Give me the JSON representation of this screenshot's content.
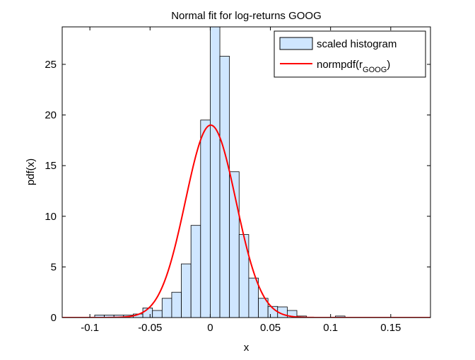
{
  "chart_data": {
    "type": "bar",
    "title": "Normal fit for log-returns GOOG",
    "xlabel": "x",
    "ylabel": "pdf(x)",
    "xlim": [
      -0.123,
      0.183
    ],
    "ylim": [
      0,
      28.7
    ],
    "xticks": [
      -0.1,
      -0.05,
      0,
      0.05,
      0.1,
      0.15
    ],
    "xtick_labels": [
      "-0.1",
      "-0.05",
      "0",
      "0.05",
      "0.1",
      "0.15"
    ],
    "yticks": [
      0,
      5,
      10,
      15,
      20,
      25
    ],
    "ytick_labels": [
      "0",
      "5",
      "10",
      "15",
      "20",
      "25"
    ],
    "grid": false,
    "legend_position": "top-right",
    "legend": {
      "histogram_label": "scaled histogram",
      "curve_label_prefix": "normpdf(r",
      "curve_label_sub": "GOOG",
      "curve_label_suffix": ")"
    },
    "histogram": {
      "bin_width": 0.008,
      "bin_centers": [
        -0.092,
        -0.084,
        -0.076,
        -0.068,
        -0.06,
        -0.052,
        -0.044,
        -0.036,
        -0.028,
        -0.02,
        -0.012,
        -0.004,
        0.004,
        0.012,
        0.02,
        0.028,
        0.036,
        0.044,
        0.052,
        0.06,
        0.068,
        0.076,
        0.108
      ],
      "values": [
        0.25,
        0.25,
        0.25,
        0.25,
        0.35,
        0.95,
        0.7,
        1.9,
        2.5,
        5.3,
        9.1,
        19.5,
        28.9,
        25.8,
        14.4,
        8.2,
        3.9,
        1.9,
        1.1,
        1.05,
        0.7,
        0.15,
        0.15
      ],
      "color": "#cfe6ff",
      "edge_color": "#000000"
    },
    "normal_fit": {
      "mu": 0.0004,
      "sigma": 0.021,
      "peak": 19.0,
      "color": "#ff0000"
    }
  }
}
